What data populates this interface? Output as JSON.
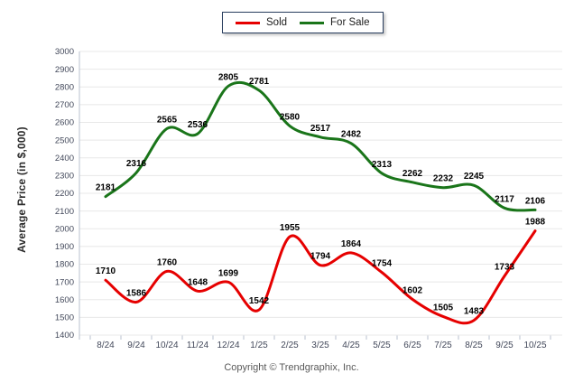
{
  "y_axis_title": "Average Price (in $,000)",
  "footer": {
    "copyright": "Copyright © Trendgraphix, Inc."
  },
  "legend": {
    "position": "top-center"
  },
  "chart_data": {
    "type": "line",
    "title": "",
    "xlabel": "",
    "ylabel": "Average Price (in $,000)",
    "categories": [
      "8/24",
      "9/24",
      "10/24",
      "11/24",
      "12/24",
      "1/25",
      "2/25",
      "3/25",
      "4/25",
      "5/25",
      "6/25",
      "7/25",
      "8/25",
      "9/25",
      "10/25"
    ],
    "series": [
      {
        "name": "Sold",
        "color": "#e60000",
        "values": [
          1710,
          1586,
          1760,
          1648,
          1699,
          1542,
          1955,
          1794,
          1864,
          1754,
          1602,
          1505,
          1483,
          1733,
          1988
        ]
      },
      {
        "name": "For Sale",
        "color": "#1a751a",
        "values": [
          2181,
          2316,
          2565,
          2536,
          2805,
          2781,
          2580,
          2517,
          2482,
          2313,
          2262,
          2232,
          2245,
          2117,
          2106
        ]
      }
    ],
    "ylim": [
      1400,
      3000
    ],
    "y_tick_step": 100,
    "grid": true,
    "smooth": true,
    "data_labels": true,
    "line_width": 3,
    "legend_position": "top-center",
    "grid_color": "#e8e8e8",
    "axis_color": "#b9c2cf",
    "tick_label_color": "#42485a",
    "data_label_color": "#000000"
  }
}
